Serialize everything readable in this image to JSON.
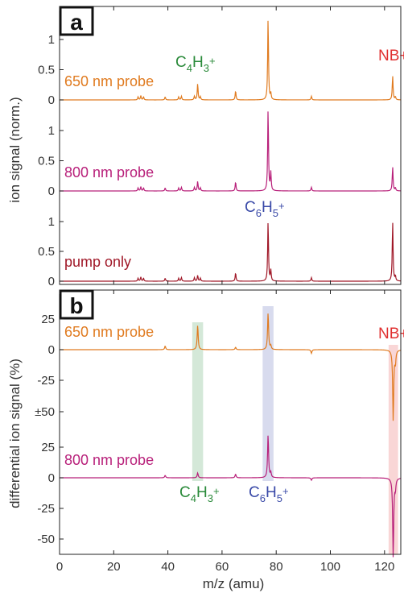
{
  "chart_data": [
    {
      "panel": "a",
      "type": "line",
      "ylabel": "ion signal (norm.)",
      "xlim": [
        0,
        126
      ],
      "x_ticks": [
        0,
        20,
        40,
        60,
        80,
        100,
        120
      ],
      "sub_plots": [
        {
          "name": "650 nm probe",
          "color": "#e07b20",
          "ylim": [
            -0.05,
            1.4
          ],
          "y_ticks": [
            "0",
            "0.5",
            "1"
          ],
          "peaks": [
            [
              29,
              0.05
            ],
            [
              30,
              0.07
            ],
            [
              31,
              0.05
            ],
            [
              39,
              0.05
            ],
            [
              44,
              0.05
            ],
            [
              45,
              0.06
            ],
            [
              49.8,
              0.06
            ],
            [
              51,
              0.27
            ],
            [
              52,
              0.05
            ],
            [
              65,
              0.15
            ],
            [
              77,
              1.35
            ],
            [
              78,
              0.1
            ],
            [
              93,
              0.06
            ],
            [
              123,
              0.4
            ],
            [
              124,
              0.05
            ]
          ]
        },
        {
          "name": "800 nm probe",
          "color": "#b8207a",
          "ylim": [
            -0.05,
            1.4
          ],
          "y_ticks": [
            "0",
            "0.5",
            "1"
          ],
          "peaks": [
            [
              29,
              0.05
            ],
            [
              30,
              0.07
            ],
            [
              31,
              0.05
            ],
            [
              39,
              0.05
            ],
            [
              44,
              0.05
            ],
            [
              45,
              0.06
            ],
            [
              49.8,
              0.06
            ],
            [
              51,
              0.16
            ],
            [
              52,
              0.05
            ],
            [
              65,
              0.15
            ],
            [
              77,
              1.35
            ],
            [
              78,
              0.3
            ],
            [
              93,
              0.06
            ],
            [
              123,
              0.4
            ],
            [
              124,
              0.05
            ]
          ]
        },
        {
          "name": "pump only",
          "color": "#a01828",
          "ylim": [
            -0.05,
            1.4
          ],
          "y_ticks": [
            "0",
            "0.5",
            "1"
          ],
          "peaks": [
            [
              29,
              0.05
            ],
            [
              30,
              0.07
            ],
            [
              31,
              0.05
            ],
            [
              39,
              0.05
            ],
            [
              44,
              0.05
            ],
            [
              45,
              0.06
            ],
            [
              49.8,
              0.06
            ],
            [
              51,
              0.1
            ],
            [
              52,
              0.05
            ],
            [
              65,
              0.14
            ],
            [
              77,
              1.0
            ],
            [
              78,
              0.18
            ],
            [
              93,
              0.06
            ],
            [
              123,
              1.0
            ],
            [
              124,
              0.08
            ]
          ]
        }
      ],
      "annotations": [
        {
          "text": "C4H3+",
          "base": "C",
          "sub1": "4",
          "mid": "H",
          "sub2": "3",
          "sup": "+",
          "color": "#2a8a3a"
        },
        {
          "text": "C6H5+",
          "base": "C",
          "sub1": "6",
          "mid": "H",
          "sub2": "5",
          "sup": "+",
          "color": "#3a4aa8"
        },
        {
          "text": "NB+",
          "color": "#e03030"
        }
      ]
    },
    {
      "panel": "b",
      "type": "line",
      "ylabel": "differential ion signal (%)",
      "xlabel": "m/z (amu)",
      "xlim": [
        0,
        126
      ],
      "x_ticks": [
        0,
        20,
        40,
        60,
        80,
        100,
        120
      ],
      "sub_plots": [
        {
          "name": "650 nm probe",
          "color": "#e07b20",
          "y_ticks": [
            "25",
            "0",
            "-25"
          ],
          "peaks": [
            [
              39,
              3
            ],
            [
              51,
              20
            ],
            [
              65,
              2
            ],
            [
              77,
              30
            ],
            [
              78,
              3
            ],
            [
              93,
              -3
            ],
            [
              123.2,
              -58
            ],
            [
              124,
              -10
            ]
          ]
        },
        {
          "name": "800 nm probe",
          "color": "#b8207a",
          "y_ticks": [
            "25",
            "0",
            "-25",
            "-50"
          ],
          "peaks": [
            [
              39,
              2
            ],
            [
              51,
              4
            ],
            [
              65,
              3
            ],
            [
              77,
              35
            ],
            [
              78,
              4
            ],
            [
              93,
              -2
            ],
            [
              123.2,
              -65
            ],
            [
              124,
              -8
            ]
          ]
        }
      ],
      "shared_tick": "±50",
      "highlight_bands": [
        {
          "x": [
            49,
            53
          ],
          "color": "#2a8a3a"
        },
        {
          "x": [
            75,
            79
          ],
          "color": "#3a4aa8"
        },
        {
          "x": [
            121.5,
            125
          ],
          "color": "#e03030"
        }
      ],
      "annotations": [
        {
          "text": "C4H3+",
          "base": "C",
          "sub1": "4",
          "mid": "H",
          "sub2": "3",
          "sup": "+",
          "color": "#2a8a3a"
        },
        {
          "text": "C6H5+",
          "base": "C",
          "sub1": "6",
          "mid": "H",
          "sub2": "5",
          "sup": "+",
          "color": "#3a4aa8"
        },
        {
          "text": "NB+",
          "color": "#e03030"
        }
      ]
    }
  ]
}
